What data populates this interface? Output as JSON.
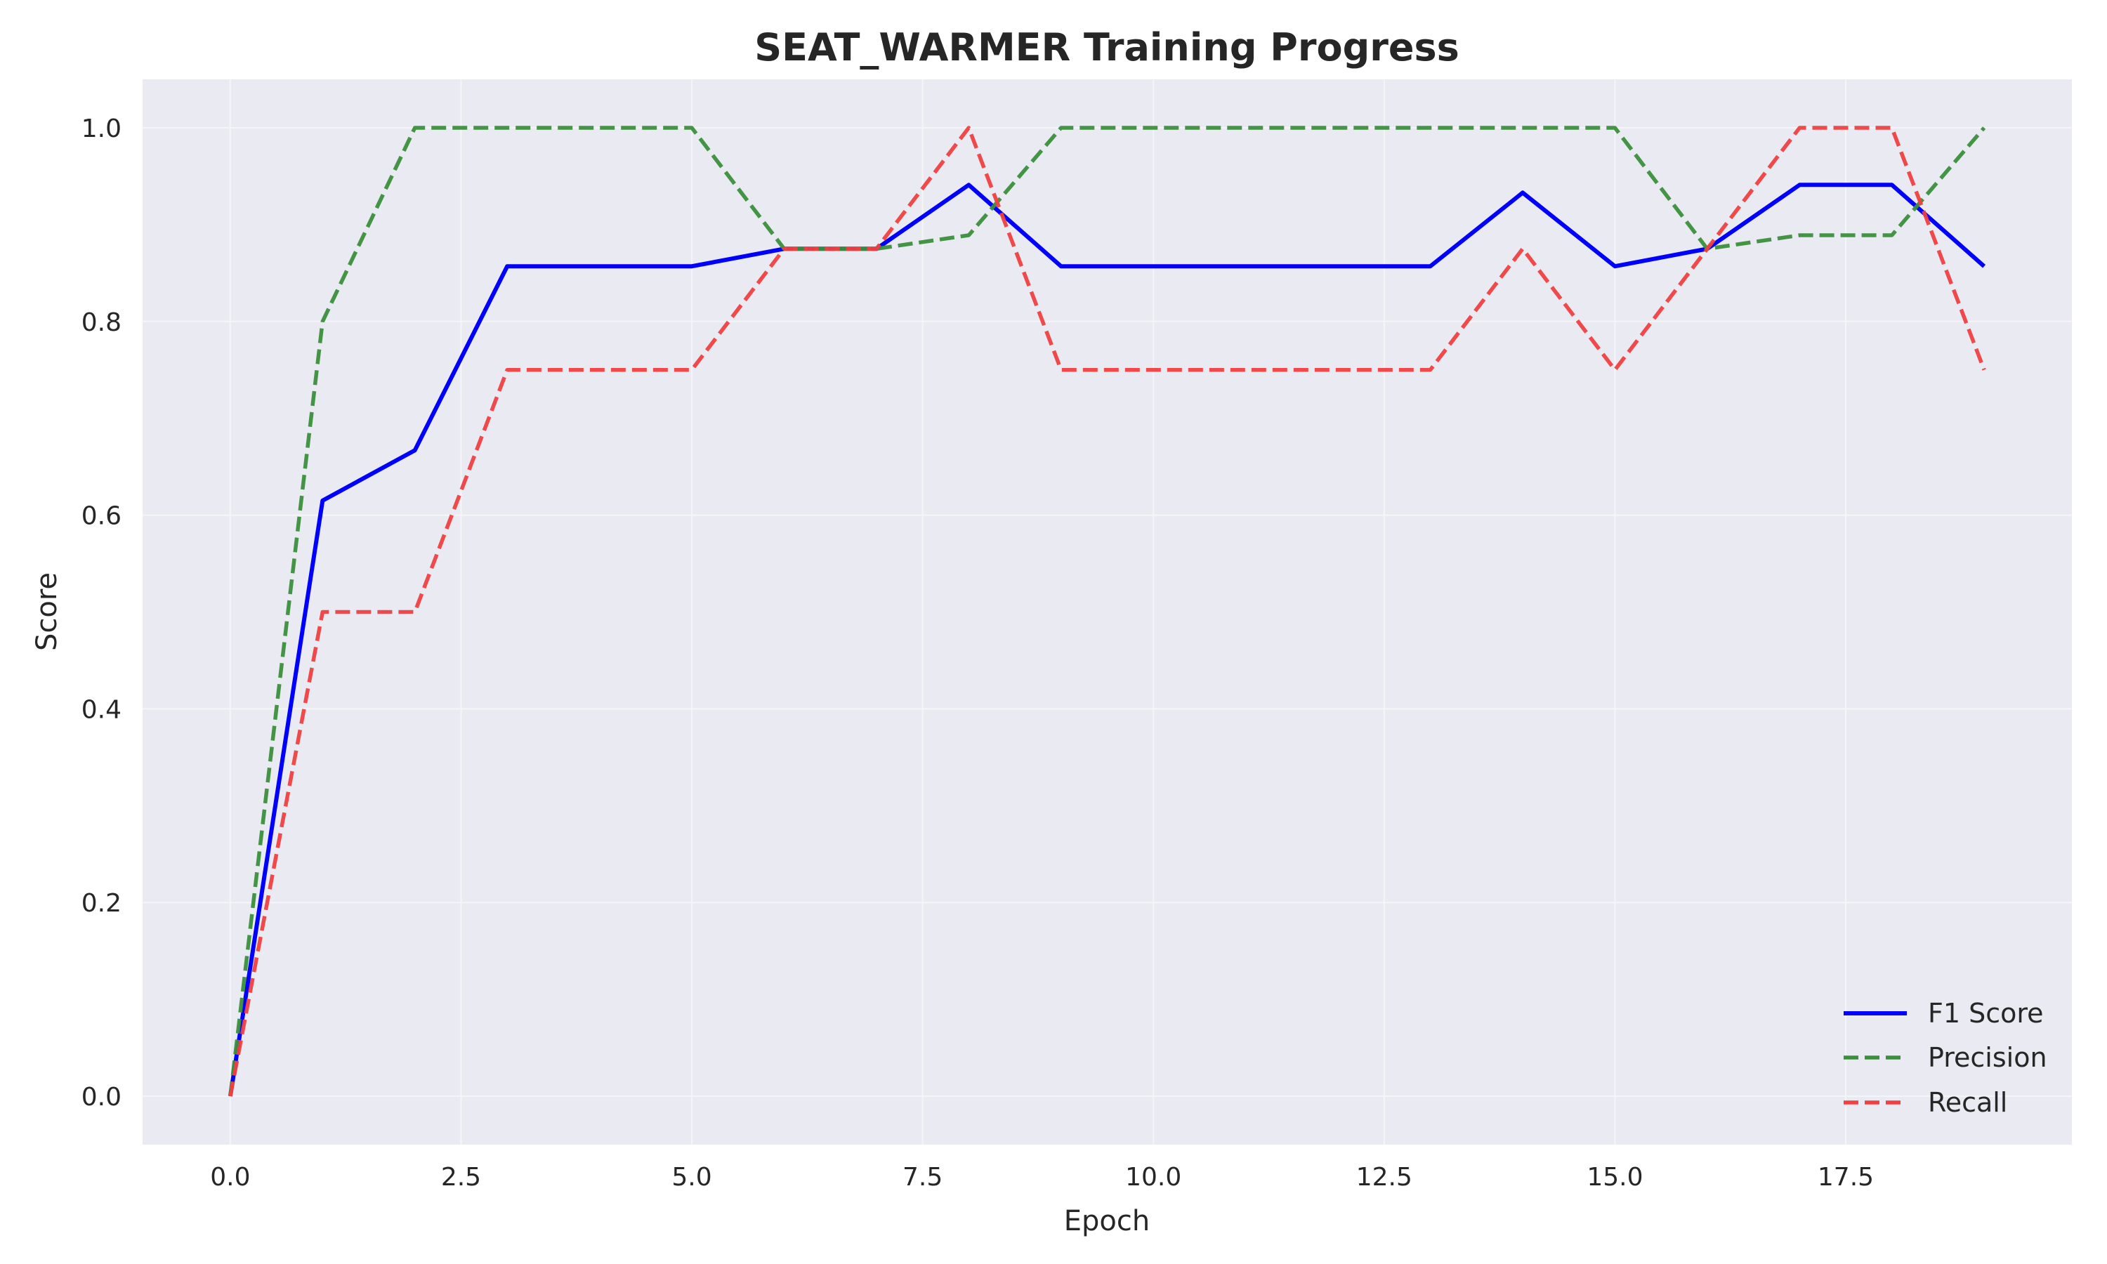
{
  "chart_data": {
    "type": "line",
    "title": "SEAT_WARMER Training Progress",
    "xlabel": "Epoch",
    "ylabel": "Score",
    "xlim": [
      -0.95,
      19.95
    ],
    "ylim": [
      -0.05,
      1.05
    ],
    "xticks": [
      0,
      2.5,
      5,
      7.5,
      10,
      12.5,
      15,
      17.5
    ],
    "xtick_labels": [
      "0.0",
      "2.5",
      "5.0",
      "7.5",
      "10.0",
      "12.5",
      "15.0",
      "17.5"
    ],
    "yticks": [
      0,
      0.2,
      0.4,
      0.6,
      0.8,
      1.0
    ],
    "ytick_labels": [
      "0.0",
      "0.2",
      "0.4",
      "0.6",
      "0.8",
      "1.0"
    ],
    "grid": true,
    "legend_position": "bottom-right",
    "x": [
      0,
      1,
      2,
      3,
      4,
      5,
      6,
      7,
      8,
      9,
      10,
      11,
      12,
      13,
      14,
      15,
      16,
      17,
      18,
      19
    ],
    "series": [
      {
        "name": "F1 Score",
        "color": "#0000ff",
        "style": "solid",
        "values": [
          0,
          0.615,
          0.667,
          0.857,
          0.857,
          0.857,
          0.875,
          0.875,
          0.941,
          0.857,
          0.857,
          0.857,
          0.857,
          0.857,
          0.933,
          0.857,
          0.875,
          0.941,
          0.941,
          0.857
        ]
      },
      {
        "name": "Precision",
        "color": "#3a8f3a",
        "style": "dashed",
        "values": [
          0,
          0.8,
          1.0,
          1.0,
          1.0,
          1.0,
          0.875,
          0.875,
          0.889,
          1.0,
          1.0,
          1.0,
          1.0,
          1.0,
          1.0,
          1.0,
          0.875,
          0.889,
          0.889,
          1.0
        ]
      },
      {
        "name": "Recall",
        "color": "#f04040",
        "style": "dashed",
        "values": [
          0,
          0.5,
          0.5,
          0.75,
          0.75,
          0.75,
          0.875,
          0.875,
          1.0,
          0.75,
          0.75,
          0.75,
          0.75,
          0.75,
          0.875,
          0.75,
          0.875,
          1.0,
          1.0,
          0.75
        ]
      }
    ]
  },
  "colors": {
    "plot_background": "#eaeaf2",
    "grid": "#f5f5f8",
    "text": "#262626"
  }
}
